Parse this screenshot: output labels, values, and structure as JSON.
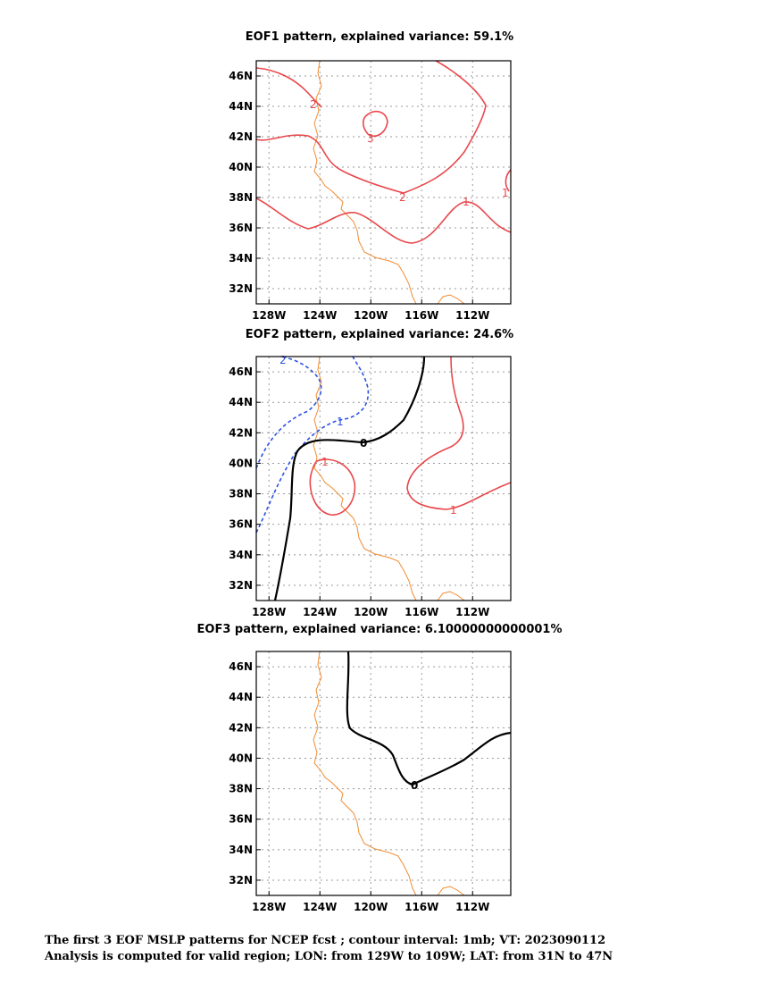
{
  "panels": [
    {
      "title": "EOF1 pattern, explained variance: 59.1%"
    },
    {
      "title": "EOF2 pattern, explained variance: 24.6%"
    },
    {
      "title": "EOF3 pattern, explained variance: 6.10000000000001%"
    }
  ],
  "caption": {
    "line1": "The first 3 EOF MSLP patterns for NCEP fcst ; contour interval: 1mb; VT: 2023090112",
    "line2": "Analysis is computed for valid region; LON: from 129W to 109W; LAT: from 31N to 47N"
  },
  "axes": {
    "lon_ticks": [
      "128W",
      "124W",
      "120W",
      "116W",
      "112W"
    ],
    "lat_ticks": [
      "46N",
      "44N",
      "42N",
      "40N",
      "38N",
      "36N",
      "34N",
      "32N"
    ],
    "lon_range": [
      -129,
      -109
    ],
    "lat_range": [
      31,
      47
    ],
    "grid": true
  },
  "colors": {
    "positive": "#e8474b",
    "negative": "#2e52e6",
    "zero": "#000000",
    "coastline": "#f08c32",
    "grid": "#9a9a9a"
  },
  "contour_labels": {
    "eof1": [
      "2",
      "3",
      "2",
      "1",
      "1"
    ],
    "eof2": [
      "2",
      "1",
      "0",
      "1",
      "1"
    ],
    "eof3": [
      "0"
    ]
  }
}
